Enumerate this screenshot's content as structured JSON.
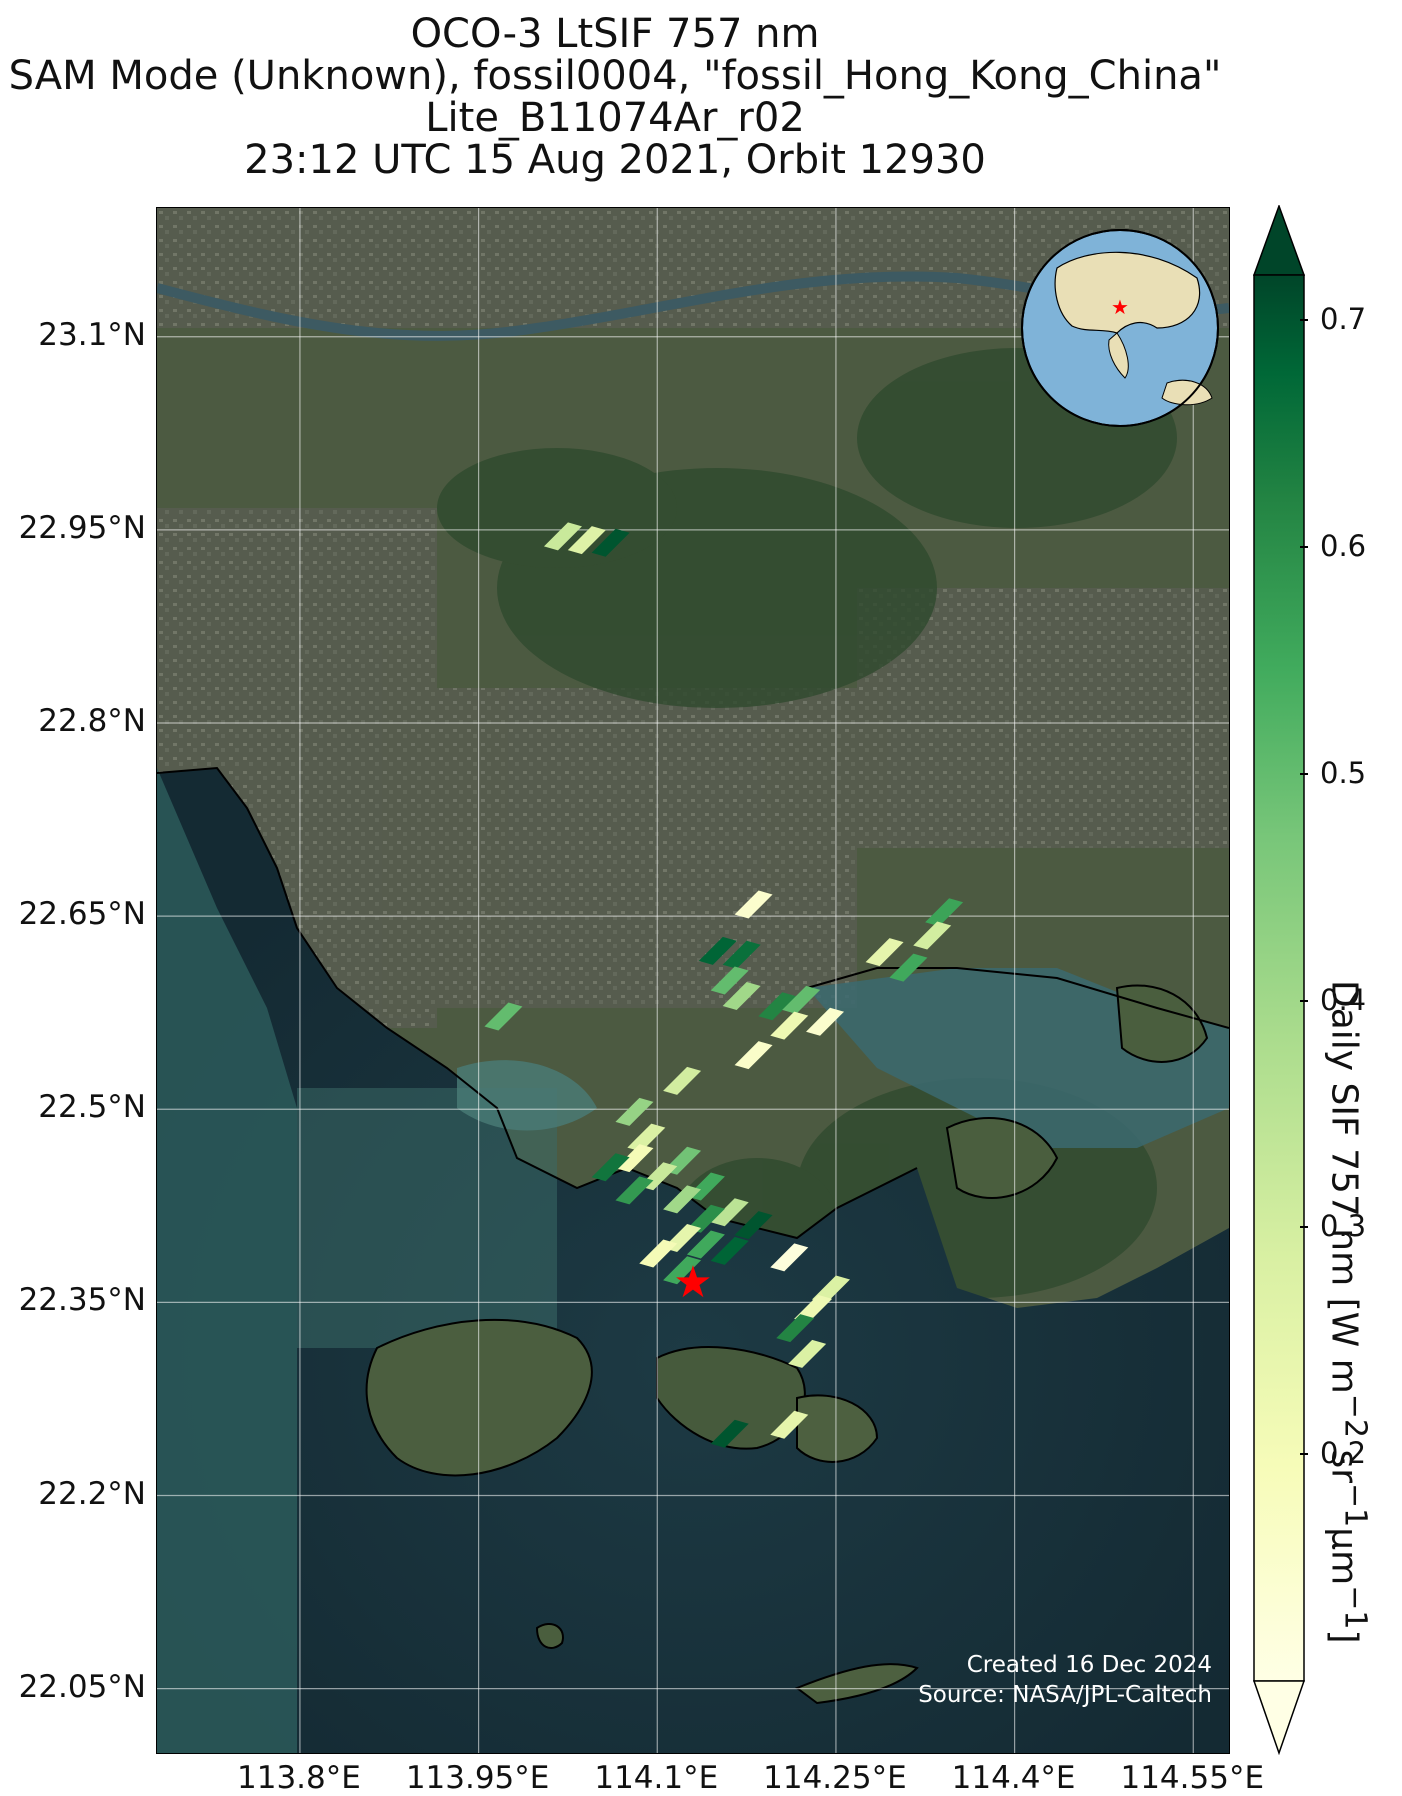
{
  "titles": [
    "OCO-3 LtSIF 757 nm",
    "SAM Mode (Unknown), fossil0004, \"fossil_Hong_Kong_China\"",
    "Lite_B11074Ar_r02",
    "23:12 UTC 15 Aug 2021, Orbit 12930"
  ],
  "axes": {
    "lat_ticks": [
      "23.1°N",
      "22.95°N",
      "22.8°N",
      "22.65°N",
      "22.5°N",
      "22.35°N",
      "22.2°N",
      "22.05°N"
    ],
    "lon_ticks": [
      "113.8°E",
      "113.95°E",
      "114.1°E",
      "114.25°E",
      "114.4°E",
      "114.55°E"
    ],
    "lat_values": [
      23.1,
      22.95,
      22.8,
      22.65,
      22.5,
      22.35,
      22.2,
      22.05
    ],
    "lon_values": [
      113.8,
      113.95,
      114.1,
      114.25,
      114.4,
      114.55
    ],
    "lat_range": [
      22.0,
      23.2
    ],
    "lon_range": [
      113.68,
      114.58
    ]
  },
  "colorbar": {
    "label_main": "Daily SIF 757 nm [W m",
    "label_sup1": "−2",
    "label_mid": " sr",
    "label_sup2": "−1",
    "label_mu": "μm",
    "label_sup3": "−1",
    "label_end": "]",
    "ticks": [
      "0.2",
      "0.3",
      "0.4",
      "0.5",
      "0.6",
      "0.7"
    ],
    "tick_values": [
      0.2,
      0.3,
      0.4,
      0.5,
      0.6,
      0.7
    ],
    "range": [
      0.1,
      0.72
    ],
    "colormap": "YlGn",
    "extend": "both"
  },
  "target": {
    "name": "fossil_Hong_Kong_China",
    "lon": 114.13,
    "lat": 22.365,
    "marker_color": "#ff0000"
  },
  "credit": {
    "created": "Created 16 Dec 2024",
    "source": "Source: NASA/JPL-Caltech"
  },
  "chart_data": {
    "type": "heatmap",
    "title": "OCO-3 LtSIF 757 nm",
    "value_label": "Daily SIF 757 nm [W m−2 sr−1μm−1]",
    "soundings": [
      {
        "lon": 114.02,
        "lat": 22.945,
        "sif": 0.32
      },
      {
        "lon": 114.04,
        "lat": 22.942,
        "sif": 0.27
      },
      {
        "lon": 114.06,
        "lat": 22.94,
        "sif": 0.7
      },
      {
        "lon": 114.18,
        "lat": 22.659,
        "sif": 0.15
      },
      {
        "lon": 114.34,
        "lat": 22.653,
        "sif": 0.56
      },
      {
        "lon": 114.33,
        "lat": 22.635,
        "sif": 0.3
      },
      {
        "lon": 114.15,
        "lat": 22.623,
        "sif": 0.68
      },
      {
        "lon": 114.17,
        "lat": 22.62,
        "sif": 0.66
      },
      {
        "lon": 114.16,
        "lat": 22.6,
        "sif": 0.5
      },
      {
        "lon": 114.17,
        "lat": 22.588,
        "sif": 0.4
      },
      {
        "lon": 114.29,
        "lat": 22.622,
        "sif": 0.25
      },
      {
        "lon": 114.31,
        "lat": 22.61,
        "sif": 0.55
      },
      {
        "lon": 114.2,
        "lat": 22.58,
        "sif": 0.62
      },
      {
        "lon": 114.22,
        "lat": 22.585,
        "sif": 0.5
      },
      {
        "lon": 114.21,
        "lat": 22.565,
        "sif": 0.22
      },
      {
        "lon": 114.24,
        "lat": 22.568,
        "sif": 0.15
      },
      {
        "lon": 113.97,
        "lat": 22.572,
        "sif": 0.5
      },
      {
        "lon": 114.18,
        "lat": 22.542,
        "sif": 0.16
      },
      {
        "lon": 114.12,
        "lat": 22.522,
        "sif": 0.3
      },
      {
        "lon": 114.08,
        "lat": 22.498,
        "sif": 0.42
      },
      {
        "lon": 114.09,
        "lat": 22.478,
        "sif": 0.28
      },
      {
        "lon": 114.08,
        "lat": 22.462,
        "sif": 0.2
      },
      {
        "lon": 114.06,
        "lat": 22.455,
        "sif": 0.65
      },
      {
        "lon": 114.12,
        "lat": 22.46,
        "sif": 0.48
      },
      {
        "lon": 114.1,
        "lat": 22.448,
        "sif": 0.32
      },
      {
        "lon": 114.08,
        "lat": 22.437,
        "sif": 0.58
      },
      {
        "lon": 114.14,
        "lat": 22.44,
        "sif": 0.55
      },
      {
        "lon": 114.12,
        "lat": 22.43,
        "sif": 0.4
      },
      {
        "lon": 114.16,
        "lat": 22.42,
        "sif": 0.35
      },
      {
        "lon": 114.14,
        "lat": 22.415,
        "sif": 0.6
      },
      {
        "lon": 114.18,
        "lat": 22.41,
        "sif": 0.7
      },
      {
        "lon": 114.12,
        "lat": 22.4,
        "sif": 0.25
      },
      {
        "lon": 114.14,
        "lat": 22.395,
        "sif": 0.55
      },
      {
        "lon": 114.16,
        "lat": 22.39,
        "sif": 0.68
      },
      {
        "lon": 114.1,
        "lat": 22.388,
        "sif": 0.2
      },
      {
        "lon": 114.12,
        "lat": 22.375,
        "sif": 0.55
      },
      {
        "lon": 114.21,
        "lat": 22.385,
        "sif": 0.12
      },
      {
        "lon": 114.245,
        "lat": 22.36,
        "sif": 0.28
      },
      {
        "lon": 114.23,
        "lat": 22.345,
        "sif": 0.22
      },
      {
        "lon": 114.215,
        "lat": 22.33,
        "sif": 0.62
      },
      {
        "lon": 114.225,
        "lat": 22.31,
        "sif": 0.28
      },
      {
        "lon": 114.21,
        "lat": 22.255,
        "sif": 0.25
      },
      {
        "lon": 114.16,
        "lat": 22.248,
        "sif": 0.7
      }
    ]
  }
}
